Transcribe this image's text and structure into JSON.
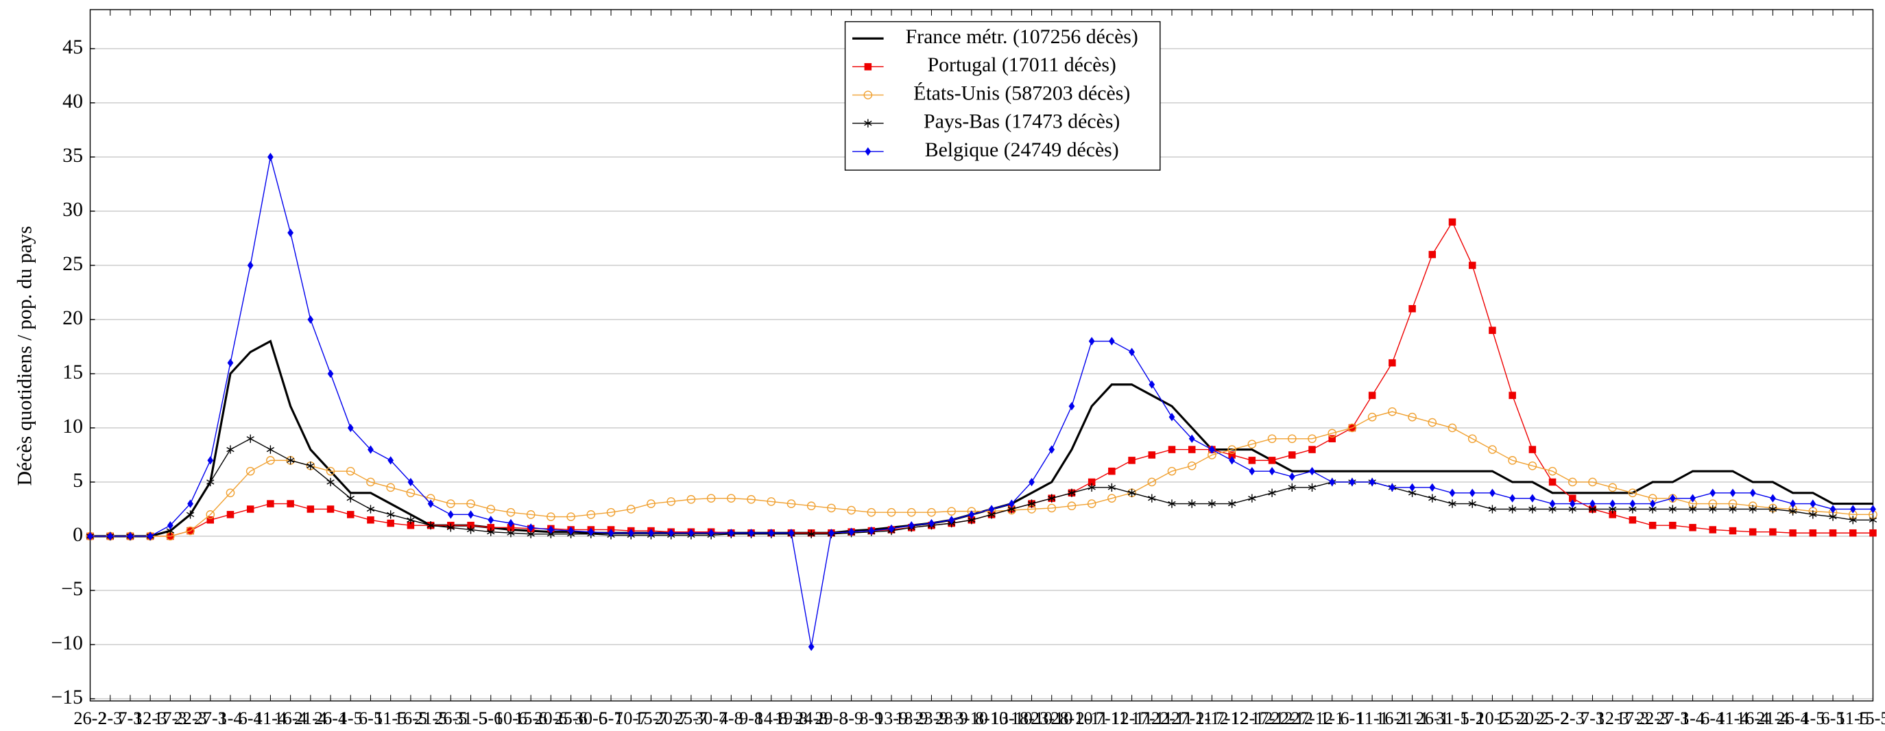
{
  "chart_data": {
    "type": "line",
    "y_label": "Décès quotidiens / pop. du pays",
    "ylim": [
      -15.2,
      48.6
    ],
    "yticks": [
      {
        "value": -15,
        "label": "−15"
      },
      {
        "value": -10,
        "label": "−10"
      },
      {
        "value": -5,
        "label": "−5"
      },
      0,
      5,
      10,
      15,
      20,
      25,
      30,
      35,
      40,
      45
    ],
    "grid": true,
    "legend": "top",
    "categories": [
      "26-2",
      "2-3",
      "7-3",
      "12-3",
      "17-3",
      "22-3",
      "27-3",
      "1-4",
      "6-4",
      "11-4",
      "16-4",
      "21-4",
      "26-4",
      "1-5",
      "6-5",
      "11-5",
      "16-5",
      "21-5",
      "26-5",
      "31-5",
      "5-6",
      "10-6",
      "15-6",
      "20-6",
      "25-6",
      "30-6",
      "5-7",
      "10-7",
      "15-7",
      "20-7",
      "25-7",
      "30-7",
      "4-8",
      "9-8",
      "14-8",
      "19-8",
      "24-8",
      "29-8",
      "3-9",
      "8-9",
      "13-9",
      "18-9",
      "23-9",
      "28-9",
      "3-10",
      "8-10",
      "13-10",
      "18-10",
      "23-10",
      "28-10",
      "2-11",
      "7-11",
      "12-11",
      "17-11",
      "22-11",
      "27-11",
      "2-12",
      "7-12",
      "12-12",
      "17-12",
      "22-12",
      "27-12",
      "1-1",
      "6-1",
      "11-1",
      "16-1",
      "21-1",
      "26-1",
      "31-1",
      "5-2",
      "10-2",
      "15-2",
      "20-2",
      "25-2",
      "2-3",
      "7-3",
      "12-3",
      "17-3",
      "22-3",
      "27-3",
      "1-4",
      "6-4",
      "11-4",
      "16-4",
      "21-4",
      "26-4",
      "1-5",
      "6-5",
      "11-5",
      "15-5"
    ],
    "series": [
      {
        "name": "France métr. (107256 décès)",
        "color": "#000000",
        "marker": "none",
        "values": [
          0,
          0,
          0,
          0,
          0.5,
          2,
          5,
          15,
          17,
          18,
          12,
          8,
          6,
          4,
          4,
          3,
          2,
          1,
          1,
          1,
          0.8,
          0.6,
          0.5,
          0.4,
          0.4,
          0.3,
          0.3,
          0.3,
          0.3,
          0.3,
          0.3,
          0.3,
          0.3,
          0.3,
          0.3,
          0.3,
          0.3,
          0.3,
          0.5,
          0.6,
          0.8,
          1,
          1.2,
          1.5,
          2,
          2.5,
          3,
          4,
          5,
          8,
          12,
          14,
          14,
          13,
          12,
          10,
          8,
          8,
          8,
          7,
          6,
          6,
          6,
          6,
          6,
          6,
          6,
          6,
          6,
          6,
          6,
          5,
          5,
          4,
          4,
          4,
          4,
          4,
          5,
          5,
          6,
          6,
          6,
          5,
          5,
          4,
          4,
          3,
          3,
          3
        ]
      },
      {
        "name": "Portugal (17011 décès)",
        "color": "#ee0000",
        "marker": "square",
        "values": [
          0,
          0,
          0,
          0,
          0,
          0.5,
          1.5,
          2,
          2.5,
          3,
          3,
          2.5,
          2.5,
          2,
          1.5,
          1.2,
          1,
          1,
          1,
          1,
          0.8,
          0.8,
          0.7,
          0.7,
          0.6,
          0.6,
          0.6,
          0.5,
          0.5,
          0.4,
          0.4,
          0.4,
          0.3,
          0.3,
          0.3,
          0.3,
          0.3,
          0.3,
          0.4,
          0.5,
          0.6,
          0.8,
          1,
          1.2,
          1.5,
          2,
          2.5,
          3,
          3.5,
          4,
          5,
          6,
          7,
          7.5,
          8,
          8,
          8,
          7.5,
          7,
          7,
          7.5,
          8,
          9,
          10,
          13,
          16,
          21,
          26,
          29,
          25,
          19,
          13,
          8,
          5,
          3.5,
          2.5,
          2,
          1.5,
          1,
          1,
          0.8,
          0.6,
          0.5,
          0.4,
          0.4,
          0.3,
          0.3,
          0.3,
          0.3,
          0.3
        ]
      },
      {
        "name": "États-Unis (587203 décès)",
        "color": "#f0a030",
        "marker": "circle",
        "values": [
          0,
          0,
          0,
          0,
          0,
          0.5,
          2,
          4,
          6,
          7,
          7,
          6.5,
          6,
          6,
          5,
          4.5,
          4,
          3.5,
          3,
          3,
          2.5,
          2.2,
          2,
          1.8,
          1.8,
          2,
          2.2,
          2.5,
          3,
          3.2,
          3.4,
          3.5,
          3.5,
          3.4,
          3.2,
          3,
          2.8,
          2.6,
          2.4,
          2.2,
          2.2,
          2.2,
          2.2,
          2.3,
          2.3,
          2.3,
          2.4,
          2.5,
          2.6,
          2.8,
          3,
          3.5,
          4,
          5,
          6,
          6.5,
          7.5,
          8,
          8.5,
          9,
          9,
          9,
          9.5,
          10,
          11,
          11.5,
          11,
          10.5,
          10,
          9,
          8,
          7,
          6.5,
          6,
          5,
          5,
          4.5,
          4,
          3.5,
          3.5,
          3,
          3,
          3,
          2.8,
          2.6,
          2.5,
          2.3,
          2.2,
          2,
          2
        ]
      },
      {
        "name": "Pays-Bas (17473 décès)",
        "color": "#000000",
        "marker": "star",
        "values": [
          0,
          0,
          0,
          0,
          0.5,
          2,
          5,
          8,
          9,
          8,
          7,
          6.5,
          5,
          3.5,
          2.5,
          2,
          1.5,
          1,
          0.8,
          0.6,
          0.4,
          0.3,
          0.2,
          0.2,
          0.2,
          0.2,
          0.1,
          0.1,
          0.1,
          0.1,
          0.1,
          0.1,
          0.2,
          0.2,
          0.2,
          0.2,
          0.2,
          0.2,
          0.3,
          0.4,
          0.5,
          0.8,
          1,
          1.2,
          1.5,
          2,
          2.5,
          3,
          3.5,
          4,
          4.5,
          4.5,
          4,
          3.5,
          3,
          3,
          3,
          3,
          3.5,
          4,
          4.5,
          4.5,
          5,
          5,
          5,
          4.5,
          4,
          3.5,
          3,
          3,
          2.5,
          2.5,
          2.5,
          2.5,
          2.5,
          2.5,
          2.5,
          2.5,
          2.5,
          2.5,
          2.5,
          2.5,
          2.5,
          2.5,
          2.5,
          2.3,
          2,
          1.8,
          1.5,
          1.5
        ]
      },
      {
        "name": "Belgique (24749 décès)",
        "color": "#0000ee",
        "marker": "diamond",
        "values": [
          0,
          0,
          0,
          0,
          1,
          3,
          7,
          16,
          25,
          35,
          28,
          20,
          15,
          10,
          8,
          7,
          5,
          3,
          2,
          2,
          1.5,
          1.2,
          0.8,
          0.6,
          0.5,
          0.4,
          0.3,
          0.3,
          0.3,
          0.3,
          0.3,
          0.3,
          0.3,
          0.3,
          0.3,
          0.3,
          -10.2,
          0.3,
          0.4,
          0.5,
          0.7,
          1,
          1.2,
          1.5,
          2,
          2.5,
          3,
          5,
          8,
          12,
          18,
          18,
          17,
          14,
          11,
          9,
          8,
          7,
          6,
          6,
          5.5,
          6,
          5,
          5,
          5,
          4.5,
          4.5,
          4.5,
          4,
          4,
          4,
          3.5,
          3.5,
          3,
          3,
          3,
          3,
          3,
          3,
          3.5,
          3.5,
          4,
          4,
          4,
          3.5,
          3,
          3,
          2.5,
          2.5,
          2.5
        ]
      }
    ]
  }
}
